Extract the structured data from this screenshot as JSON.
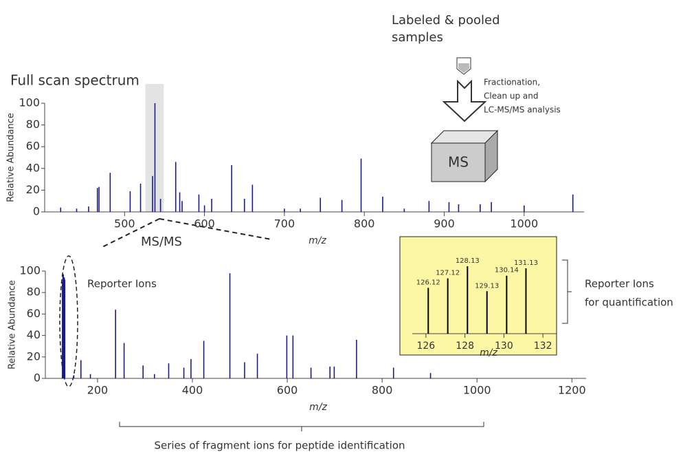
{
  "diagram": {
    "sample_label": [
      "Labeled & pooled",
      "samples"
    ],
    "process_label": [
      "Fractionation,",
      "Clean up and",
      "LC-MS/MS analysis"
    ],
    "instrument_label": "MS",
    "msms_label": "MS/MS",
    "reporter_ions_label": "Reporter Ions",
    "quantification_label": [
      "Reporter Ions",
      "for quantification"
    ],
    "fragment_label": "Series of fragment ions for peptide identification"
  },
  "chart_data": [
    {
      "type": "spectrum",
      "title": "Full scan spectrum",
      "xlabel": "m/z",
      "ylabel": "Relative Abundance",
      "color": "#1a1a8c",
      "x": [
        420,
        440,
        455,
        466,
        468,
        482,
        507,
        520,
        535,
        538,
        545,
        564,
        569,
        572,
        593,
        600,
        609,
        634,
        650,
        660,
        700,
        720,
        745,
        772,
        796,
        823,
        850,
        881,
        906,
        918,
        945,
        959,
        1000,
        1061
      ],
      "values": [
        4,
        3,
        5,
        22,
        23,
        36,
        19,
        26,
        33,
        100,
        12,
        46,
        18,
        10,
        16,
        6,
        12,
        43,
        12,
        25,
        3,
        3,
        13,
        11,
        49,
        14,
        3,
        10,
        9,
        7,
        7,
        9,
        6,
        16
      ],
      "highlight": [
        526,
        549
      ],
      "xlim": [
        400,
        1075
      ],
      "ylim": [
        0,
        100
      ],
      "xticks": [
        500,
        600,
        700,
        800,
        900,
        1000
      ],
      "yticks": [
        0,
        20,
        40,
        60,
        80,
        100
      ]
    },
    {
      "type": "spectrum",
      "xlabel": "m/z",
      "ylabel": "Relative Abundance",
      "color": "#1a1a8c",
      "x": [
        126,
        127,
        128,
        129,
        130,
        131,
        150,
        165,
        185,
        238,
        256,
        296,
        320,
        350,
        382,
        397,
        424,
        479,
        510,
        537,
        599,
        612,
        650,
        690,
        699,
        746,
        824,
        902
      ],
      "values": [
        90,
        95,
        97,
        93,
        94,
        92,
        3,
        17,
        4,
        64,
        33,
        12,
        4,
        14,
        10,
        18,
        35,
        98,
        15,
        23,
        40,
        40,
        10,
        11,
        11,
        36,
        10,
        5
      ],
      "xlim": [
        90,
        1230
      ],
      "ylim": [
        0,
        100
      ],
      "xticks": [
        200,
        400,
        600,
        800,
        1000,
        1200
      ],
      "yticks": [
        0,
        20,
        40,
        60,
        80,
        100
      ]
    },
    {
      "type": "spectrum",
      "xlabel": "m/z",
      "color": "#000000",
      "background": "#fbf7a4",
      "peak_labels": true,
      "x": [
        126.12,
        127.12,
        128.13,
        129.13,
        130.14,
        131.13
      ],
      "values": [
        68,
        82,
        100,
        63,
        86,
        97
      ],
      "xlim": [
        125.3,
        132.7
      ],
      "ylim": [
        0,
        100
      ],
      "xticks": [
        126,
        128,
        130,
        132
      ]
    }
  ]
}
